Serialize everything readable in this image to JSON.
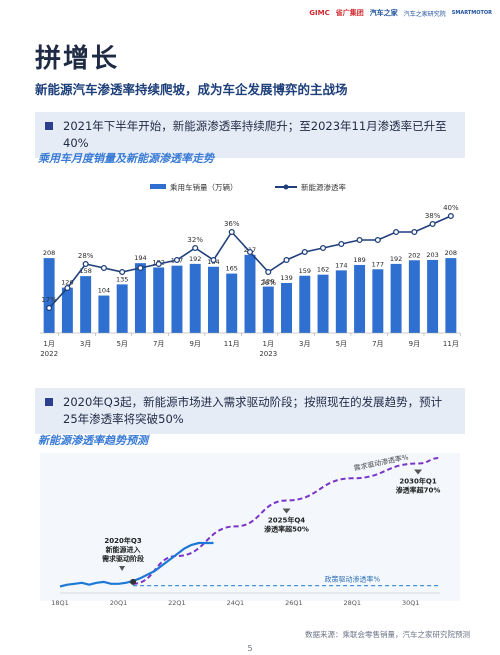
{
  "logos": {
    "gimc": "GIMC",
    "gimc_cn": "省广集团",
    "autohome": "汽车之家",
    "aa": "汽车之家研究院",
    "cap": "SMARTMOTOR"
  },
  "page_title": "拼增长",
  "page_subtitle": "新能源汽车渗透率持续爬坡，成为车企发展博弈的主战场",
  "banner1": "2021年下半年开始，新能源渗透率持续爬升；至2023年11月渗透率已升至40%",
  "chart1_title": "乘用车月度销量及新能源渗透率走势",
  "banner2": "2020年Q3起，新能源市场进入需求驱动阶段；按照现在的发展趋势，预计25年渗透率将突破50%",
  "chart2_title": "新能源渗透率趋势预测",
  "source": "数据来源：乘联会零售销量，汽车之家研究院预测",
  "page_number": "5",
  "colors": {
    "bar": "#2e6fd0",
    "line": "#1f3f7a",
    "dashed_purple": "#7a35c8",
    "dashed_blue": "#4a90d9",
    "accent": "#2b3f8e"
  },
  "chart_data": [
    {
      "type": "bar",
      "title": "乘用车月度销量及新能源渗透率走势",
      "legend": [
        "乘用车销量（万辆）",
        "新能源渗透率"
      ],
      "legend_position": "top",
      "categories": [
        "2022-01",
        "2022-02",
        "2022-03",
        "2022-04",
        "2022-05",
        "2022-06",
        "2022-07",
        "2022-08",
        "2022-09",
        "2022-10",
        "2022-11",
        "2022-12",
        "2023-01",
        "2023-02",
        "2023-03",
        "2023-04",
        "2023-05",
        "2023-06",
        "2023-07",
        "2023-08",
        "2023-09",
        "2023-10",
        "2023-11"
      ],
      "x_tick_labels": [
        {
          "index": 0,
          "label": "1月",
          "sub": "2022"
        },
        {
          "index": 2,
          "label": "3月"
        },
        {
          "index": 4,
          "label": "5月"
        },
        {
          "index": 6,
          "label": "7月"
        },
        {
          "index": 8,
          "label": "9月"
        },
        {
          "index": 10,
          "label": "11月"
        },
        {
          "index": 12,
          "label": "1月",
          "sub": "2023"
        },
        {
          "index": 14,
          "label": "3月"
        },
        {
          "index": 16,
          "label": "5月"
        },
        {
          "index": 18,
          "label": "7月"
        },
        {
          "index": 20,
          "label": "9月"
        },
        {
          "index": 22,
          "label": "11月"
        }
      ],
      "series": [
        {
          "name": "乘用车销量（万辆）",
          "kind": "bar",
          "values": [
            208,
            126,
            158,
            104,
            135,
            194,
            182,
            187,
            192,
            184,
            165,
            217,
            129,
            139,
            159,
            162,
            174,
            189,
            177,
            192,
            202,
            203,
            208
          ]
        },
        {
          "name": "新能源渗透率",
          "kind": "line",
          "values": [
            17,
            22,
            28,
            27,
            26,
            27,
            28,
            29,
            32,
            29,
            36,
            31,
            26,
            29,
            31,
            32,
            33,
            34,
            34,
            36,
            36,
            38,
            40
          ],
          "labeled": [
            {
              "index": 0,
              "label": "17%"
            },
            {
              "index": 2,
              "label": "28%"
            },
            {
              "index": 8,
              "label": "32%"
            },
            {
              "index": 10,
              "label": "36%"
            },
            {
              "index": 12,
              "label": "26%"
            },
            {
              "index": 21,
              "label": "38%"
            },
            {
              "index": 22,
              "label": "40%"
            }
          ]
        }
      ],
      "grid": false
    },
    {
      "type": "line",
      "title": "新能源渗透率趋势预测",
      "x_ticks": [
        "18Q1",
        "20Q1",
        "22Q1",
        "24Q1",
        "26Q1",
        "28Q1",
        "30Q1"
      ],
      "x_range": [
        2018.0,
        2031.0
      ],
      "series": [
        {
          "name": "actual",
          "x": [
            2018.0,
            2018.25,
            2018.5,
            2018.75,
            2019.0,
            2019.25,
            2019.5,
            2019.75,
            2020.0,
            2020.25,
            2020.5,
            2020.75,
            2021.0,
            2021.25,
            2021.5,
            2021.75,
            2022.0,
            2022.25,
            2022.5,
            2022.75,
            2023.0,
            2023.25
          ],
          "y": [
            3.5,
            4.5,
            5,
            5.5,
            4.5,
            5.5,
            6,
            5,
            5,
            5.5,
            6.5,
            8,
            10,
            12,
            15,
            18,
            21,
            24,
            26,
            27,
            27,
            27
          ]
        },
        {
          "name": "需求驱动渗透率%",
          "style": "dashed",
          "x": [
            2020.5,
            2022,
            2024,
            2025.75,
            2028,
            2030.25,
            2031
          ],
          "y": [
            5,
            20,
            36,
            50,
            62,
            70,
            73
          ]
        },
        {
          "name": "政策驱动渗透率%",
          "style": "dashed",
          "x": [
            2020.5,
            2031
          ],
          "y": [
            4,
            4
          ]
        }
      ],
      "annotations": [
        {
          "lines": [
            "2020年Q3",
            "新能源进入",
            "需求驱动阶段"
          ],
          "x": 2020.5
        },
        {
          "lines": [
            "2025年Q4",
            "渗透率超50%"
          ],
          "x": 2025.75
        },
        {
          "lines": [
            "2030年Q1",
            "渗透率超70%"
          ],
          "x": 2030.25
        }
      ]
    }
  ]
}
